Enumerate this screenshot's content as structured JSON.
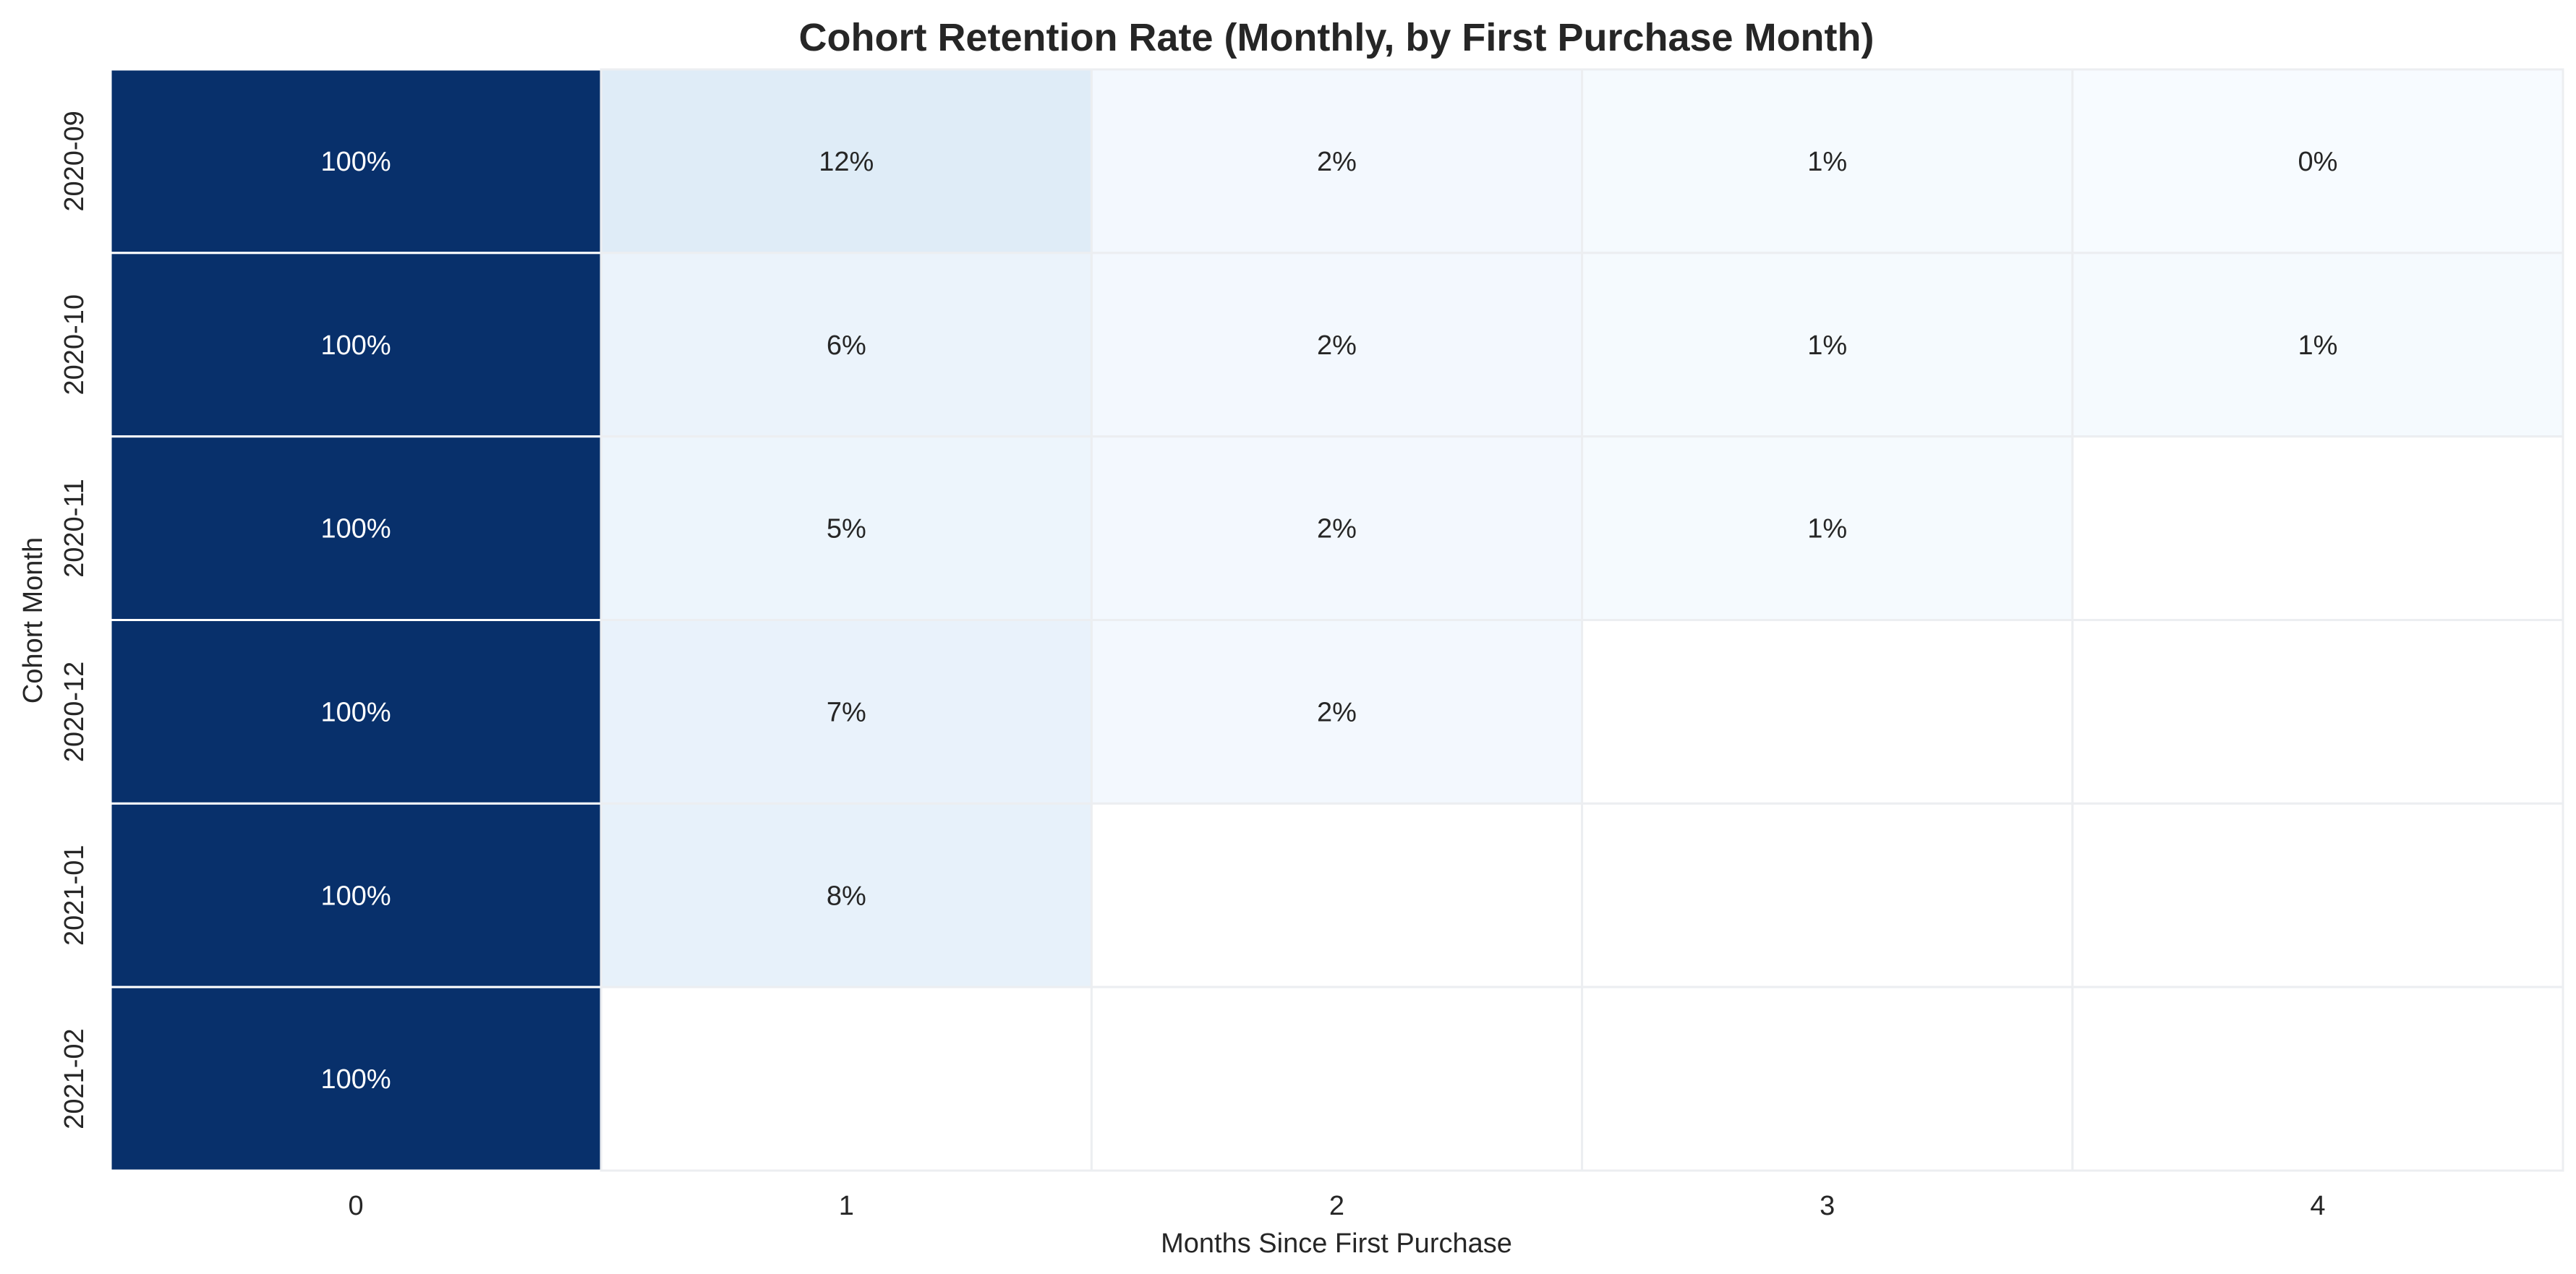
{
  "chart_data": {
    "type": "heatmap",
    "title": "Cohort Retention Rate (Monthly, by First Purchase Month)",
    "xlabel": "Months Since First Purchase",
    "ylabel": "Cohort Month",
    "x_categories": [
      "0",
      "1",
      "2",
      "3",
      "4"
    ],
    "y_categories": [
      "2020-09",
      "2020-10",
      "2020-11",
      "2020-12",
      "2021-01",
      "2021-02"
    ],
    "values": [
      [
        100,
        12,
        2,
        1,
        0
      ],
      [
        100,
        6,
        2,
        1,
        1
      ],
      [
        100,
        5,
        2,
        1,
        null
      ],
      [
        100,
        7,
        2,
        null,
        null
      ],
      [
        100,
        8,
        null,
        null,
        null
      ],
      [
        100,
        null,
        null,
        null,
        null
      ]
    ],
    "cell_labels": [
      [
        "100%",
        "12%",
        "2%",
        "1%",
        "0%"
      ],
      [
        "100%",
        "6%",
        "2%",
        "1%",
        "1%"
      ],
      [
        "100%",
        "5%",
        "2%",
        "1%",
        ""
      ],
      [
        "100%",
        "7%",
        "2%",
        "",
        ""
      ],
      [
        "100%",
        "8%",
        "",
        "",
        ""
      ],
      [
        "100%",
        "",
        "",
        "",
        ""
      ]
    ],
    "colormap": "Blues",
    "value_range": [
      0,
      100
    ],
    "colorbar": false,
    "grid": false,
    "colors": {
      "max": "#08306b",
      "min": "#f7fbff",
      "missing": "#ffffff",
      "text_dark": "#262626",
      "text_light": "#ffffff"
    }
  }
}
